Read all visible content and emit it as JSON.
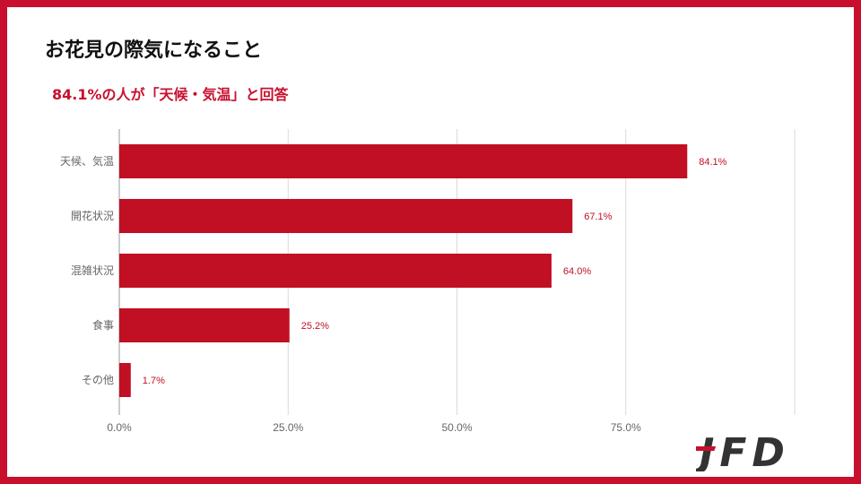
{
  "slide": {
    "title": "お花見の際気になること",
    "subtitle": "84.1%の人が「天候・気温」と回答",
    "logo_text": "JFD",
    "colors": {
      "accent": "#c8102e",
      "bar": "#c10f24",
      "grid": "#d9d9d9",
      "tick": "#666666"
    }
  },
  "chart_data": {
    "type": "bar",
    "orientation": "horizontal",
    "categories": [
      "天候、気温",
      "開花状況",
      "混雑状況",
      "食事",
      "その他"
    ],
    "values": [
      84.1,
      67.1,
      64.0,
      25.2,
      1.7
    ],
    "value_labels": [
      "84.1%",
      "67.1%",
      "64.0%",
      "25.2%",
      "1.7%"
    ],
    "x_ticks": [
      0,
      25,
      50,
      75,
      100
    ],
    "x_tick_labels": [
      "0.0%",
      "25.0%",
      "50.0%",
      "75.0%",
      ""
    ],
    "xlim": [
      0,
      100
    ],
    "grid": true,
    "title": "",
    "xlabel": "",
    "ylabel": ""
  }
}
